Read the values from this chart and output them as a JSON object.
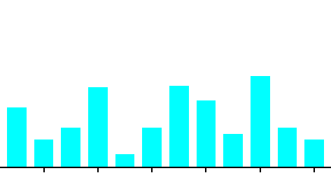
{
  "values": [
    36,
    17,
    24,
    48,
    8,
    24,
    49,
    40,
    20,
    55,
    24,
    17
  ],
  "bar_color": "#00FFFF",
  "bar_width": 0.72,
  "background_color": "#ffffff",
  "ylim": [
    0,
    100
  ],
  "xlim": [
    -0.6,
    11.6
  ],
  "spine_color": "#000000",
  "tick_color": "#000000",
  "xtick_positions": [
    1,
    3,
    5,
    7,
    9,
    11
  ]
}
